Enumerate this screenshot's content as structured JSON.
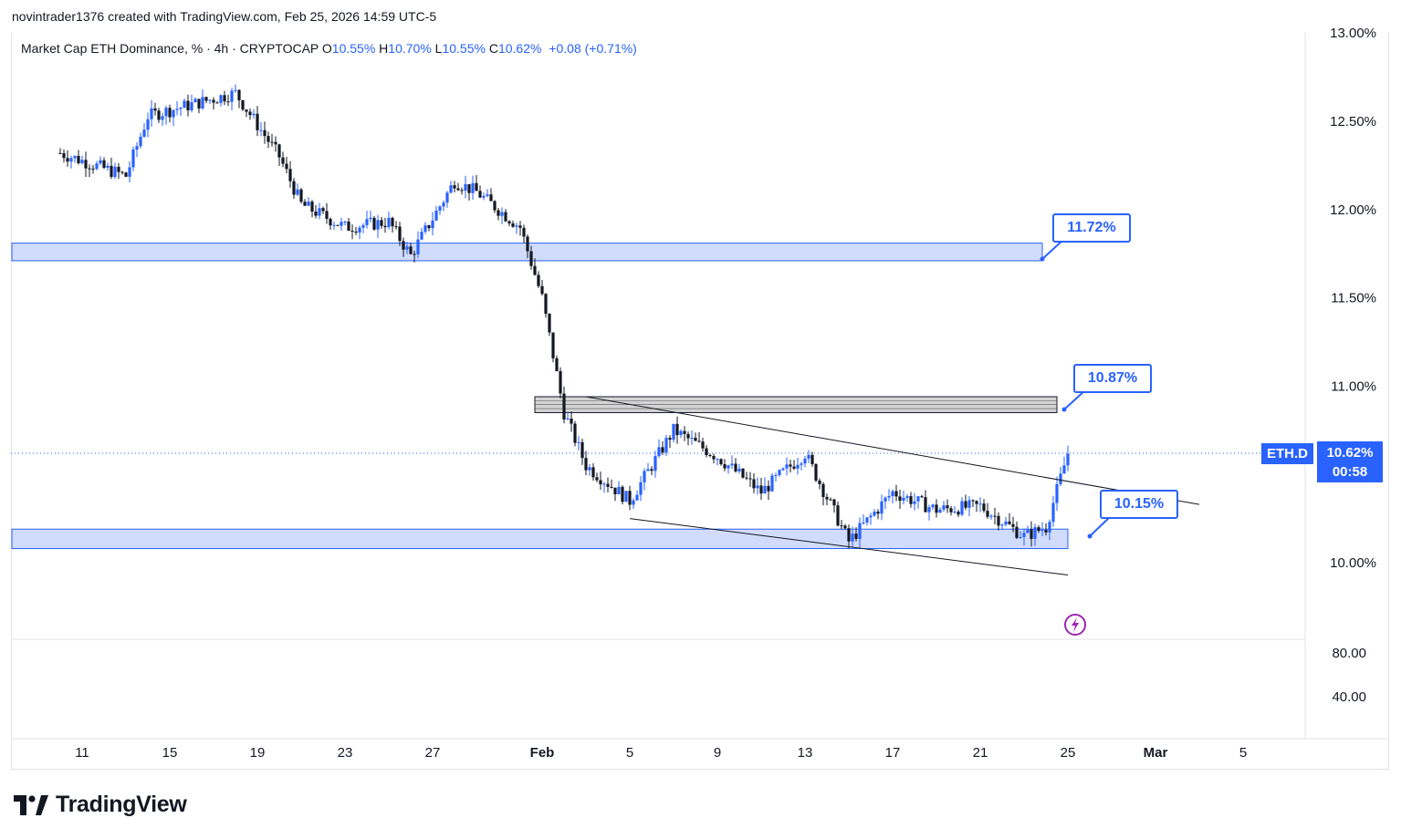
{
  "header": {
    "credit": "novintrader1376 created with TradingView.com, Feb 25, 2026 14:59 UTC-5"
  },
  "legend": {
    "symbol_text": "Market Cap ETH Dominance, % · 4h · CRYPTOCAP",
    "open_label": "O",
    "open_value": "10.55%",
    "high_label": "H",
    "high_value": "10.70%",
    "low_label": "L",
    "low_value": "10.55%",
    "close_label": "C",
    "close_value": "10.62%",
    "change": "+0.08 (+0.71%)"
  },
  "price_tag": {
    "symbol": "ETH.D",
    "price": "10.62%",
    "countdown": "00:58"
  },
  "callouts": [
    {
      "text": "11.72%"
    },
    {
      "text": "10.87%"
    },
    {
      "text": "10.15%"
    }
  ],
  "brand": {
    "name": "TradingView"
  },
  "colors": {
    "up": "#2962ff",
    "down": "#131722",
    "zone_fill": "#d1dcfc",
    "zone_border": "#2962ff",
    "gray_zone": "#d4d4d4",
    "accent_purple": "#9c27b0"
  },
  "chart_data": {
    "type": "candlestick",
    "symbol": "ETH.D",
    "timeframe": "4h",
    "y_axis": {
      "ticks": [
        "13.00%",
        "12.50%",
        "12.00%",
        "11.50%",
        "11.00%",
        "10.00%"
      ],
      "range": [
        9.6,
        13.0
      ]
    },
    "volume_axis": {
      "ticks": [
        "80.00",
        "40.00"
      ]
    },
    "x_ticks": [
      "11",
      "15",
      "19",
      "23",
      "27",
      "Feb",
      "5",
      "9",
      "13",
      "17",
      "21",
      "25",
      "Mar",
      "5"
    ],
    "zones": [
      {
        "low": 11.71,
        "high": 11.81,
        "label": "11.72%"
      },
      {
        "low": 10.85,
        "high": 10.94,
        "label": "10.87%"
      },
      {
        "low": 10.08,
        "high": 10.19,
        "label": "10.15%"
      }
    ],
    "trendlines": [
      {
        "from": [
          "Feb 3",
          10.94
        ],
        "to": [
          "Mar 3",
          10.33
        ]
      },
      {
        "from": [
          "Feb 5",
          10.25
        ],
        "to": [
          "Feb 25",
          9.93
        ]
      }
    ],
    "current_price": 10.62,
    "series_anchors": [
      {
        "date": "Jan 10",
        "close": 12.32
      },
      {
        "date": "Jan 13",
        "close": 12.19
      },
      {
        "date": "Jan 14",
        "close": 12.53
      },
      {
        "date": "Jan 18",
        "close": 12.66
      },
      {
        "date": "Jan 20",
        "close": 12.3
      },
      {
        "date": "Jan 21",
        "close": 12.03
      },
      {
        "date": "Jan 23",
        "close": 11.9
      },
      {
        "date": "Jan 25",
        "close": 11.93
      },
      {
        "date": "Jan 26",
        "close": 11.74
      },
      {
        "date": "Jan 28",
        "close": 12.16
      },
      {
        "date": "Jan 29",
        "close": 12.1
      },
      {
        "date": "Jan 31",
        "close": 11.9
      },
      {
        "date": "Feb 1",
        "close": 11.5
      },
      {
        "date": "Feb 2",
        "close": 10.85
      },
      {
        "date": "Feb 3",
        "close": 10.55
      },
      {
        "date": "Feb 5",
        "close": 10.35
      },
      {
        "date": "Feb 7",
        "close": 10.75
      },
      {
        "date": "Feb 9",
        "close": 10.6
      },
      {
        "date": "Feb 11",
        "close": 10.4
      },
      {
        "date": "Feb 13",
        "close": 10.62
      },
      {
        "date": "Feb 15",
        "close": 10.12
      },
      {
        "date": "Feb 17",
        "close": 10.4
      },
      {
        "date": "Feb 19",
        "close": 10.3
      },
      {
        "date": "Feb 21",
        "close": 10.32
      },
      {
        "date": "Feb 23",
        "close": 10.15
      },
      {
        "date": "Feb 24",
        "close": 10.2
      },
      {
        "date": "Feb 25",
        "close": 10.62
      }
    ]
  }
}
